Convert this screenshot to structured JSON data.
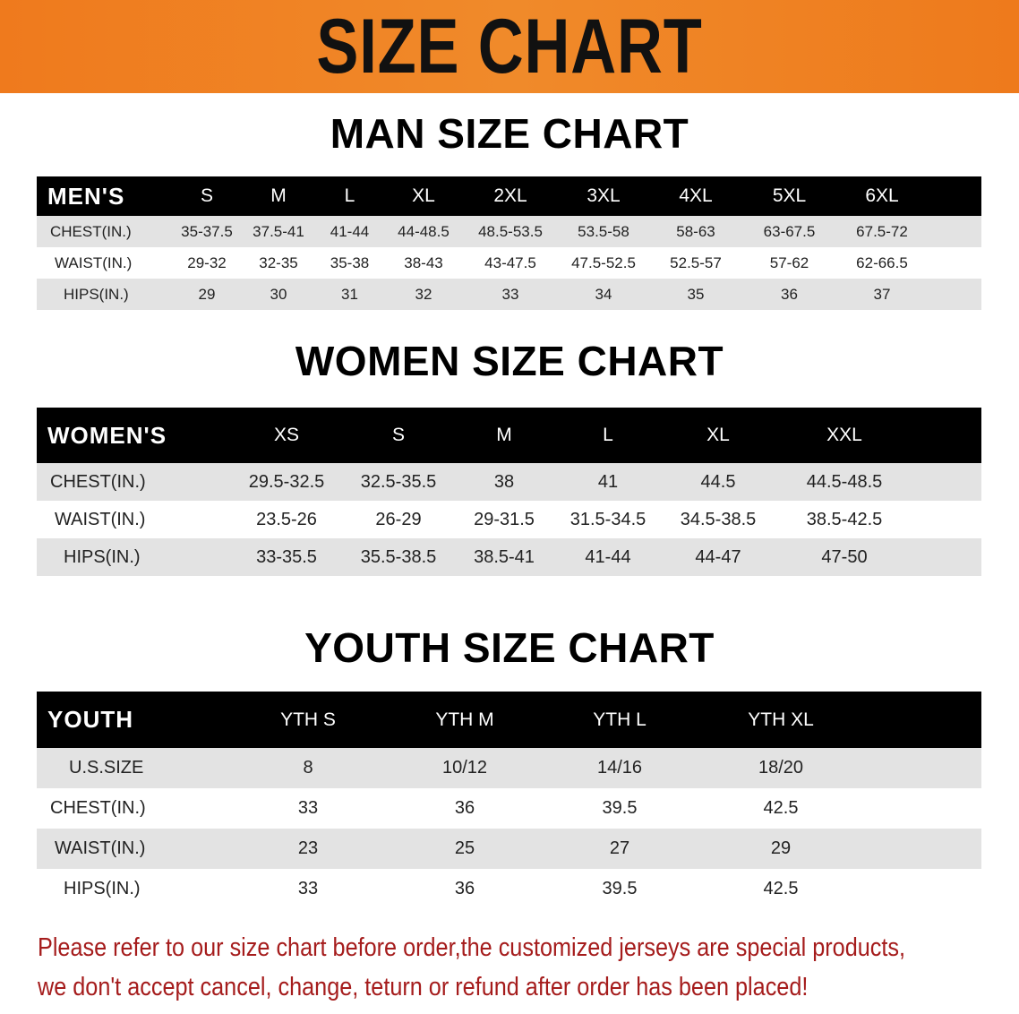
{
  "banner_title": "SIZE CHART",
  "men": {
    "title": "MAN SIZE CHART",
    "header": [
      "MEN'S",
      "S",
      "M",
      "L",
      "XL",
      "2XL",
      "3XL",
      "4XL",
      "5XL",
      "6XL"
    ],
    "rows": [
      [
        "CHEST(IN.)",
        "35-37.5",
        "37.5-41",
        "41-44",
        "44-48.5",
        "48.5-53.5",
        "53.5-58",
        "58-63",
        "63-67.5",
        "67.5-72"
      ],
      [
        "WAIST(IN.)",
        "29-32",
        "32-35",
        "35-38",
        "38-43",
        "43-47.5",
        "47.5-52.5",
        "52.5-57",
        "57-62",
        "62-66.5"
      ],
      [
        "HIPS(IN.)",
        "29",
        "30",
        "31",
        "32",
        "33",
        "34",
        "35",
        "36",
        "37"
      ]
    ]
  },
  "women": {
    "title": "WOMEN SIZE CHART",
    "header": [
      "WOMEN'S",
      "XS",
      "S",
      "M",
      "L",
      "XL",
      "XXL"
    ],
    "rows": [
      [
        "CHEST(IN.)",
        "29.5-32.5",
        "32.5-35.5",
        "38",
        "41",
        "44.5",
        "44.5-48.5"
      ],
      [
        "WAIST(IN.)",
        "23.5-26",
        "26-29",
        "29-31.5",
        "31.5-34.5",
        "34.5-38.5",
        "38.5-42.5"
      ],
      [
        "HIPS(IN.)",
        "33-35.5",
        "35.5-38.5",
        "38.5-41",
        "41-44",
        "44-47",
        "47-50"
      ]
    ]
  },
  "youth": {
    "title": "YOUTH SIZE CHART",
    "header": [
      "YOUTH",
      "YTH S",
      "YTH M",
      "YTH L",
      "YTH XL"
    ],
    "rows": [
      [
        "U.S.SIZE",
        "8",
        "10/12",
        "14/16",
        "18/20"
      ],
      [
        "CHEST(IN.)",
        "33",
        "36",
        "39.5",
        "42.5"
      ],
      [
        "WAIST(IN.)",
        "23",
        "25",
        "27",
        "29"
      ],
      [
        "HIPS(IN.)",
        "33",
        "36",
        "39.5",
        "42.5"
      ]
    ]
  },
  "notice": {
    "line1": "Please refer to our size chart before order,the customized jerseys are special products,",
    "line2": "we don't accept cancel, change, teturn or refund after order has been placed!"
  },
  "colors": {
    "banner": "#ef7a1d",
    "header_bg": "#000000",
    "stripe": "#e3e3e3",
    "notice": "#a51c1c"
  }
}
